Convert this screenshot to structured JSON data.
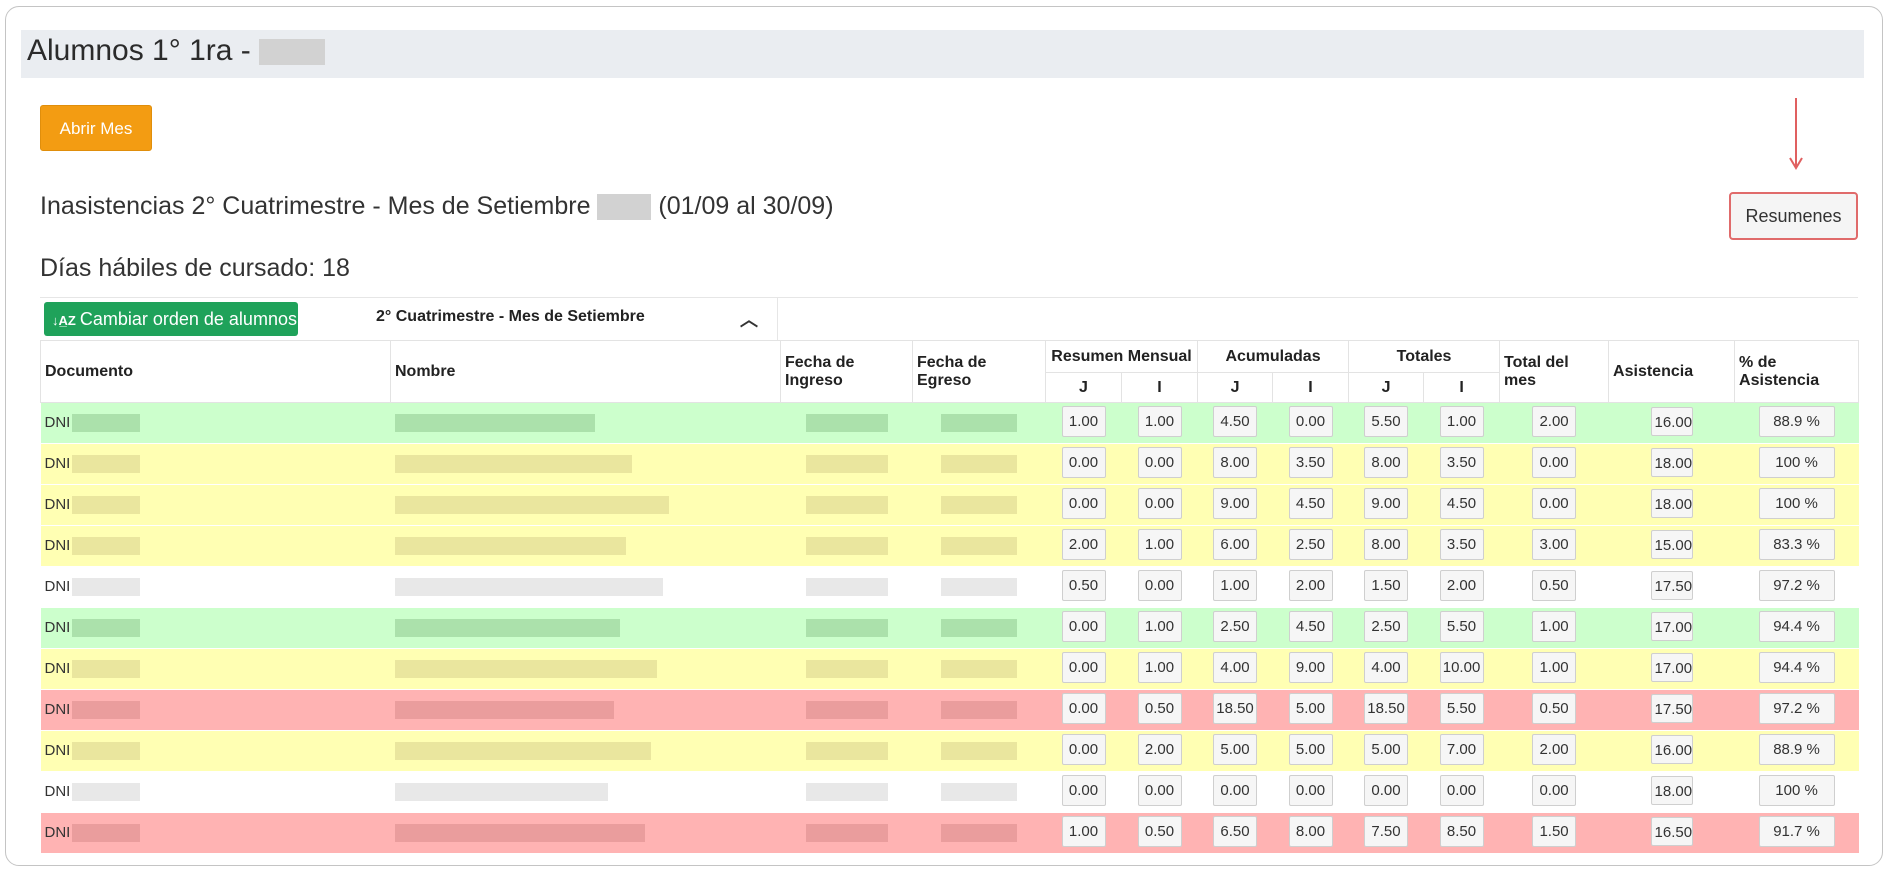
{
  "page": {
    "title": "Alumnos 1° 1ra -",
    "open_month_label": "Abrir Mes",
    "summaries_label": "Resumenes",
    "heading_prefix": "Inasistencias 2° Cuatrimestre - Mes de Setiembre",
    "heading_suffix": "(01/09 al 30/09)",
    "working_days": "Días hábiles de cursado: 18"
  },
  "table": {
    "order_button_label": "Cambiar orden de alumnos",
    "period_label": "2° Cuatrimestre - Mes de Setiembre",
    "headers": {
      "documento": "Documento",
      "nombre": "Nombre",
      "fecha_ingreso": "Fecha de Ingreso",
      "fecha_egreso": "Fecha de Egreso",
      "resumen_mensual": "Resumen Mensual",
      "acumuladas": "Acumuladas",
      "totales": "Totales",
      "total_mes": "Total del mes",
      "asistencia": "Asistencia",
      "pct_asistencia": "% de Asistencia",
      "j": "J",
      "i": "I"
    },
    "rows": [
      {
        "color": "green",
        "doc": "DNI",
        "rm_j": "1.00",
        "rm_i": "1.00",
        "ac_j": "4.50",
        "ac_i": "0.00",
        "to_j": "5.50",
        "to_i": "1.00",
        "mes": "2.00",
        "asis": "16.00",
        "pct": "88.9 %"
      },
      {
        "color": "yellow",
        "doc": "DNI",
        "rm_j": "0.00",
        "rm_i": "0.00",
        "ac_j": "8.00",
        "ac_i": "3.50",
        "to_j": "8.00",
        "to_i": "3.50",
        "mes": "0.00",
        "asis": "18.00",
        "pct": "100 %"
      },
      {
        "color": "yellow",
        "doc": "DNI",
        "rm_j": "0.00",
        "rm_i": "0.00",
        "ac_j": "9.00",
        "ac_i": "4.50",
        "to_j": "9.00",
        "to_i": "4.50",
        "mes": "0.00",
        "asis": "18.00",
        "pct": "100 %"
      },
      {
        "color": "yellow",
        "doc": "DNI",
        "rm_j": "2.00",
        "rm_i": "1.00",
        "ac_j": "6.00",
        "ac_i": "2.50",
        "to_j": "8.00",
        "to_i": "3.50",
        "mes": "3.00",
        "asis": "15.00",
        "pct": "83.3 %"
      },
      {
        "color": "white",
        "doc": "DNI",
        "rm_j": "0.50",
        "rm_i": "0.00",
        "ac_j": "1.00",
        "ac_i": "2.00",
        "to_j": "1.50",
        "to_i": "2.00",
        "mes": "0.50",
        "asis": "17.50",
        "pct": "97.2 %"
      },
      {
        "color": "green",
        "doc": "DNI",
        "rm_j": "0.00",
        "rm_i": "1.00",
        "ac_j": "2.50",
        "ac_i": "4.50",
        "to_j": "2.50",
        "to_i": "5.50",
        "mes": "1.00",
        "asis": "17.00",
        "pct": "94.4 %"
      },
      {
        "color": "yellow",
        "doc": "DNI",
        "rm_j": "0.00",
        "rm_i": "1.00",
        "ac_j": "4.00",
        "ac_i": "9.00",
        "to_j": "4.00",
        "to_i": "10.00",
        "mes": "1.00",
        "asis": "17.00",
        "pct": "94.4 %"
      },
      {
        "color": "red",
        "doc": "DNI",
        "rm_j": "0.00",
        "rm_i": "0.50",
        "ac_j": "18.50",
        "ac_i": "5.00",
        "to_j": "18.50",
        "to_i": "5.50",
        "mes": "0.50",
        "asis": "17.50",
        "pct": "97.2 %"
      },
      {
        "color": "yellow",
        "doc": "DNI",
        "rm_j": "0.00",
        "rm_i": "2.00",
        "ac_j": "5.00",
        "ac_i": "5.00",
        "to_j": "5.00",
        "to_i": "7.00",
        "mes": "2.00",
        "asis": "16.00",
        "pct": "88.9 %"
      },
      {
        "color": "white",
        "doc": "DNI",
        "rm_j": "0.00",
        "rm_i": "0.00",
        "ac_j": "0.00",
        "ac_i": "0.00",
        "to_j": "0.00",
        "to_i": "0.00",
        "mes": "0.00",
        "asis": "18.00",
        "pct": "100 %"
      },
      {
        "color": "red",
        "doc": "DNI",
        "rm_j": "1.00",
        "rm_i": "0.50",
        "ac_j": "6.50",
        "ac_i": "8.00",
        "to_j": "7.50",
        "to_i": "8.50",
        "mes": "1.50",
        "asis": "16.50",
        "pct": "91.7 %"
      }
    ]
  }
}
